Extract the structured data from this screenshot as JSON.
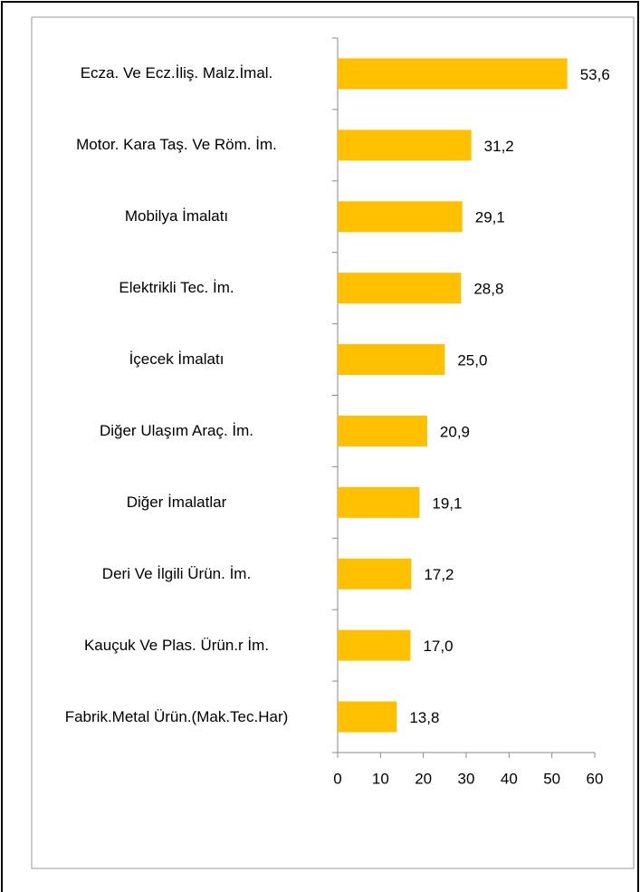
{
  "chart_data": {
    "type": "barh",
    "categories": [
      "Ecza. Ve Ecz.İliş. Malz.İmal.",
      "Motor. Kara Taş. Ve Röm. İm.",
      "Mobilya İmalatı",
      "Elektrikli Tec. İm.",
      "İçecek İmalatı",
      "Diğer Ulaşım Araç. İm.",
      "Diğer İmalatlar",
      "Deri Ve İlgili Ürün. İm.",
      "Kauçuk Ve Plas. Ürün.r İm.",
      "Fabrik.Metal Ürün.(Mak.Tec.Har)"
    ],
    "values": [
      53.6,
      31.2,
      29.1,
      28.8,
      25.0,
      20.9,
      19.1,
      17.2,
      17.0,
      13.8
    ],
    "value_labels": [
      "53,6",
      "31,2",
      "29,1",
      "28,8",
      "25,0",
      "20,9",
      "19,1",
      "17,2",
      "17,0",
      "13,8"
    ],
    "color": "#ffc000",
    "xlim": [
      0,
      60
    ],
    "xticks": [
      0,
      10,
      20,
      30,
      40,
      50,
      60
    ],
    "grid": false
  }
}
